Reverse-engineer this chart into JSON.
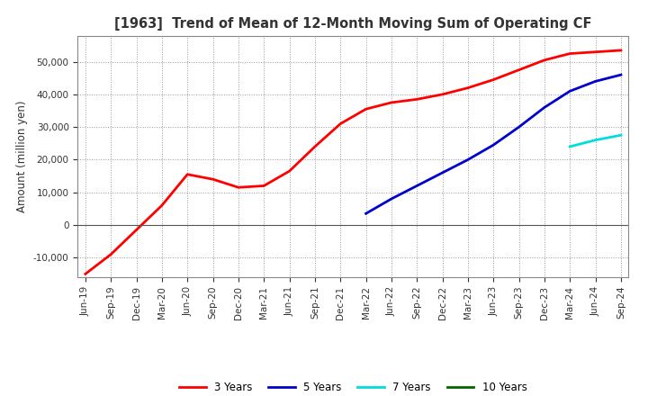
{
  "title": "[1963]  Trend of Mean of 12-Month Moving Sum of Operating CF",
  "ylabel": "Amount (million yen)",
  "ylim": [
    -16000,
    58000
  ],
  "yticks": [
    -10000,
    0,
    10000,
    20000,
    30000,
    40000,
    50000
  ],
  "background_color": "#ffffff",
  "plot_bg_color": "#ffffff",
  "grid_color": "#999999",
  "line_colors": {
    "3yr": "#ff0000",
    "5yr": "#0000cc",
    "7yr": "#00dddd",
    "10yr": "#006600"
  },
  "legend": [
    "3 Years",
    "5 Years",
    "7 Years",
    "10 Years"
  ],
  "x_labels": [
    "Jun-19",
    "Sep-19",
    "Dec-19",
    "Mar-20",
    "Jun-20",
    "Sep-20",
    "Dec-20",
    "Mar-21",
    "Jun-21",
    "Sep-21",
    "Dec-21",
    "Mar-22",
    "Jun-22",
    "Sep-22",
    "Dec-22",
    "Mar-23",
    "Jun-23",
    "Sep-23",
    "Dec-23",
    "Mar-24",
    "Jun-24",
    "Sep-24"
  ],
  "series_3yr": [
    -15000,
    -9000,
    -1500,
    6000,
    15500,
    14000,
    11500,
    12000,
    16500,
    24000,
    31000,
    35500,
    37500,
    38500,
    40000,
    42000,
    44500,
    47500,
    50500,
    52500,
    53000,
    53500
  ],
  "series_5yr": [
    null,
    null,
    null,
    null,
    null,
    null,
    null,
    null,
    null,
    null,
    null,
    3500,
    8000,
    12000,
    16000,
    20000,
    24500,
    30000,
    36000,
    41000,
    44000,
    46000
  ],
  "series_7yr": [
    null,
    null,
    null,
    null,
    null,
    null,
    null,
    null,
    null,
    null,
    null,
    null,
    null,
    null,
    null,
    null,
    null,
    null,
    null,
    24000,
    26000,
    27500
  ],
  "series_10yr": [
    null,
    null,
    null,
    null,
    null,
    null,
    null,
    null,
    null,
    null,
    null,
    null,
    null,
    null,
    null,
    null,
    null,
    null,
    null,
    null,
    null,
    null
  ]
}
